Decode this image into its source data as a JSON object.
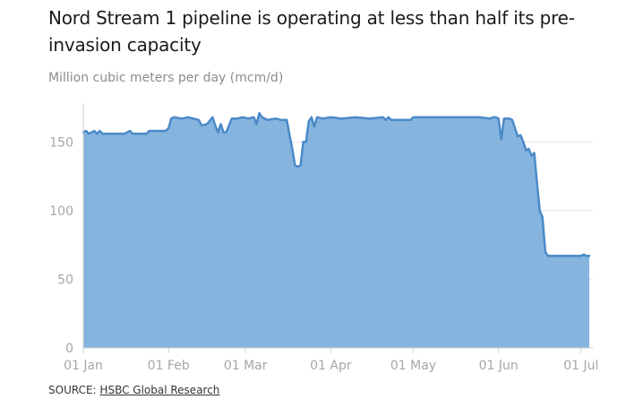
{
  "header": {
    "title": "Nord Stream 1 pipeline is operating at less than half its pre-invasion capacity",
    "subtitle": "Million cubic meters per day (mcm/d)"
  },
  "footer": {
    "source_prefix": "SOURCE:",
    "source_link": "HSBC Global Research"
  },
  "colors": {
    "line": "#4a8ac8",
    "fill": "#85b4de",
    "grid": "#e6e6e6",
    "axis": "#d0d0d0",
    "tick_text": "#a6a6a6"
  },
  "chart_data": {
    "type": "area",
    "title": "Nord Stream 1 pipeline is operating at less than half its pre-invasion capacity",
    "ylabel": "Million cubic meters per day (mcm/d)",
    "ylim": [
      0,
      175
    ],
    "yticks": [
      0,
      50,
      100,
      150
    ],
    "xlim": [
      "2022-01-01",
      "2022-07-04"
    ],
    "xticks": [
      {
        "date": "2022-01-01",
        "label": "01 Jan"
      },
      {
        "date": "2022-02-01",
        "label": "01 Feb"
      },
      {
        "date": "2022-03-01",
        "label": "01 Mar"
      },
      {
        "date": "2022-04-01",
        "label": "01 Apr"
      },
      {
        "date": "2022-05-01",
        "label": "01 May"
      },
      {
        "date": "2022-06-01",
        "label": "01 Jun"
      },
      {
        "date": "2022-07-01",
        "label": "01 Jul"
      }
    ],
    "grid": true,
    "legend": "none",
    "series": [
      {
        "points": [
          [
            "2022-01-01",
            157
          ],
          [
            "2022-01-02",
            158
          ],
          [
            "2022-01-03",
            156
          ],
          [
            "2022-01-04",
            157
          ],
          [
            "2022-01-05",
            158
          ],
          [
            "2022-01-06",
            156
          ],
          [
            "2022-01-07",
            158
          ],
          [
            "2022-01-08",
            156
          ],
          [
            "2022-01-12",
            156
          ],
          [
            "2022-01-16",
            156
          ],
          [
            "2022-01-18",
            158
          ],
          [
            "2022-01-19",
            156
          ],
          [
            "2022-01-24",
            156
          ],
          [
            "2022-01-25",
            158
          ],
          [
            "2022-01-31",
            158
          ],
          [
            "2022-02-01",
            160
          ],
          [
            "2022-02-02",
            167
          ],
          [
            "2022-02-03",
            168
          ],
          [
            "2022-02-06",
            167
          ],
          [
            "2022-02-08",
            168
          ],
          [
            "2022-02-10",
            167
          ],
          [
            "2022-02-12",
            166
          ],
          [
            "2022-02-13",
            162
          ],
          [
            "2022-02-15",
            163
          ],
          [
            "2022-02-17",
            168
          ],
          [
            "2022-02-18",
            162
          ],
          [
            "2022-02-19",
            157
          ],
          [
            "2022-02-20",
            163
          ],
          [
            "2022-02-21",
            157
          ],
          [
            "2022-02-22",
            157
          ],
          [
            "2022-02-23",
            162
          ],
          [
            "2022-02-24",
            167
          ],
          [
            "2022-02-26",
            167
          ],
          [
            "2022-02-28",
            168
          ],
          [
            "2022-03-02",
            167
          ],
          [
            "2022-03-04",
            168
          ],
          [
            "2022-03-05",
            163
          ],
          [
            "2022-03-06",
            171
          ],
          [
            "2022-03-07",
            168
          ],
          [
            "2022-03-09",
            166
          ],
          [
            "2022-03-12",
            167
          ],
          [
            "2022-03-14",
            166
          ],
          [
            "2022-03-16",
            166
          ],
          [
            "2022-03-17",
            155
          ],
          [
            "2022-03-18",
            145
          ],
          [
            "2022-03-19",
            133
          ],
          [
            "2022-03-20",
            132
          ],
          [
            "2022-03-21",
            133
          ],
          [
            "2022-03-22",
            150
          ],
          [
            "2022-03-23",
            150
          ],
          [
            "2022-03-24",
            165
          ],
          [
            "2022-03-25",
            168
          ],
          [
            "2022-03-26",
            161
          ],
          [
            "2022-03-27",
            168
          ],
          [
            "2022-03-29",
            167
          ],
          [
            "2022-04-01",
            168
          ],
          [
            "2022-04-05",
            167
          ],
          [
            "2022-04-10",
            168
          ],
          [
            "2022-04-15",
            167
          ],
          [
            "2022-04-20",
            168
          ],
          [
            "2022-04-21",
            166
          ],
          [
            "2022-04-22",
            168
          ],
          [
            "2022-04-23",
            166
          ],
          [
            "2022-04-25",
            166
          ],
          [
            "2022-04-28",
            166
          ],
          [
            "2022-04-30",
            166
          ],
          [
            "2022-05-01",
            168
          ],
          [
            "2022-05-05",
            168
          ],
          [
            "2022-05-10",
            168
          ],
          [
            "2022-05-15",
            168
          ],
          [
            "2022-05-20",
            168
          ],
          [
            "2022-05-25",
            168
          ],
          [
            "2022-05-29",
            167
          ],
          [
            "2022-05-30",
            168
          ],
          [
            "2022-05-31",
            168
          ],
          [
            "2022-06-01",
            167
          ],
          [
            "2022-06-02",
            152
          ],
          [
            "2022-06-03",
            167
          ],
          [
            "2022-06-05",
            167
          ],
          [
            "2022-06-06",
            166
          ],
          [
            "2022-06-07",
            160
          ],
          [
            "2022-06-08",
            154
          ],
          [
            "2022-06-09",
            155
          ],
          [
            "2022-06-10",
            150
          ],
          [
            "2022-06-11",
            144
          ],
          [
            "2022-06-12",
            145
          ],
          [
            "2022-06-13",
            140
          ],
          [
            "2022-06-14",
            142
          ],
          [
            "2022-06-15",
            120
          ],
          [
            "2022-06-16",
            100
          ],
          [
            "2022-06-17",
            95
          ],
          [
            "2022-06-18",
            70
          ],
          [
            "2022-06-19",
            67
          ],
          [
            "2022-06-22",
            67
          ],
          [
            "2022-06-26",
            67
          ],
          [
            "2022-06-30",
            67
          ],
          [
            "2022-07-01",
            67
          ],
          [
            "2022-07-02",
            68
          ],
          [
            "2022-07-03",
            67
          ],
          [
            "2022-07-04",
            67
          ]
        ]
      }
    ]
  }
}
